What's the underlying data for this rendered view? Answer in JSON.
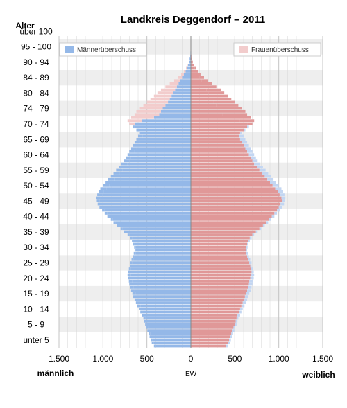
{
  "chart_data": {
    "type": "bar",
    "subtype": "population-pyramid",
    "title": "Landkreis Deggendorf – 2011",
    "y_header": "Alter",
    "x_unit_label": "EW",
    "left_label": "männlich",
    "right_label": "weiblich",
    "xlim": [
      -1500,
      1500
    ],
    "x_ticks": [
      {
        "value": -1500,
        "label": "1.500"
      },
      {
        "value": -1000,
        "label": "1.000"
      },
      {
        "value": -500,
        "label": "500"
      },
      {
        "value": 0,
        "label": "0"
      },
      {
        "value": 500,
        "label": "500"
      },
      {
        "value": 1000,
        "label": "1.000"
      },
      {
        "value": 1500,
        "label": "1.500"
      }
    ],
    "age_group_labels": [
      "unter 5",
      "5 - 9",
      "10 - 14",
      "15 - 19",
      "20 - 24",
      "25 - 29",
      "30 - 34",
      "35 - 39",
      "40 - 44",
      "45 - 49",
      "50 - 54",
      "55 - 59",
      "60 - 64",
      "65 - 69",
      "70 - 74",
      "74 - 79",
      "80 - 84",
      "84 - 89",
      "90 - 94",
      "95 - 100",
      "über 100"
    ],
    "legend": {
      "male_surplus": "Männerüberschuss",
      "female_surplus": "Frauenüberschuss"
    },
    "colors": {
      "male": "#94b8e8",
      "male_surplus": "#c3d6f2",
      "female": "#e09898",
      "female_surplus": "#f2cccc",
      "band": "#eeeeee",
      "grid": "#d6d6d6",
      "axis": "#888888"
    },
    "age_years": [
      0,
      1,
      2,
      3,
      4,
      5,
      6,
      7,
      8,
      9,
      10,
      11,
      12,
      13,
      14,
      15,
      16,
      17,
      18,
      19,
      20,
      21,
      22,
      23,
      24,
      25,
      26,
      27,
      28,
      29,
      30,
      31,
      32,
      33,
      34,
      35,
      36,
      37,
      38,
      39,
      40,
      41,
      42,
      43,
      44,
      45,
      46,
      47,
      48,
      49,
      50,
      51,
      52,
      53,
      54,
      55,
      56,
      57,
      58,
      59,
      60,
      61,
      62,
      63,
      64,
      65,
      66,
      67,
      68,
      69,
      70,
      71,
      72,
      73,
      74,
      75,
      76,
      77,
      78,
      79,
      80,
      81,
      82,
      83,
      84,
      85,
      86,
      87,
      88,
      89,
      90,
      91,
      92,
      93,
      94,
      95,
      96,
      97,
      98,
      99,
      100
    ],
    "males": [
      420,
      445,
      455,
      470,
      480,
      495,
      505,
      520,
      530,
      540,
      560,
      575,
      590,
      610,
      625,
      640,
      655,
      665,
      680,
      690,
      700,
      705,
      715,
      720,
      715,
      705,
      690,
      690,
      675,
      660,
      650,
      640,
      645,
      655,
      670,
      690,
      720,
      760,
      800,
      840,
      880,
      910,
      950,
      980,
      1010,
      1040,
      1060,
      1070,
      1075,
      1065,
      1050,
      1030,
      1000,
      970,
      940,
      910,
      880,
      850,
      820,
      790,
      760,
      740,
      720,
      700,
      680,
      660,
      640,
      620,
      600,
      580,
      620,
      660,
      640,
      560,
      420,
      360,
      340,
      320,
      290,
      260,
      240,
      220,
      200,
      180,
      160,
      140,
      120,
      100,
      80,
      60,
      45,
      32,
      22,
      14,
      8,
      5,
      3,
      2,
      1,
      0,
      0
    ],
    "females": [
      400,
      420,
      435,
      450,
      460,
      470,
      485,
      500,
      510,
      520,
      530,
      545,
      560,
      575,
      590,
      600,
      615,
      625,
      640,
      650,
      660,
      665,
      675,
      685,
      690,
      685,
      675,
      665,
      650,
      640,
      630,
      625,
      630,
      640,
      655,
      670,
      700,
      740,
      780,
      820,
      860,
      890,
      920,
      950,
      980,
      1000,
      1020,
      1040,
      1030,
      1010,
      990,
      960,
      930,
      900,
      870,
      840,
      810,
      780,
      750,
      720,
      700,
      680,
      660,
      640,
      620,
      600,
      580,
      560,
      550,
      560,
      600,
      640,
      700,
      720,
      680,
      640,
      620,
      580,
      540,
      500,
      460,
      420,
      380,
      340,
      290,
      240,
      190,
      150,
      110,
      80,
      55,
      36,
      22,
      12,
      7,
      4,
      2,
      1,
      0
    ]
  }
}
